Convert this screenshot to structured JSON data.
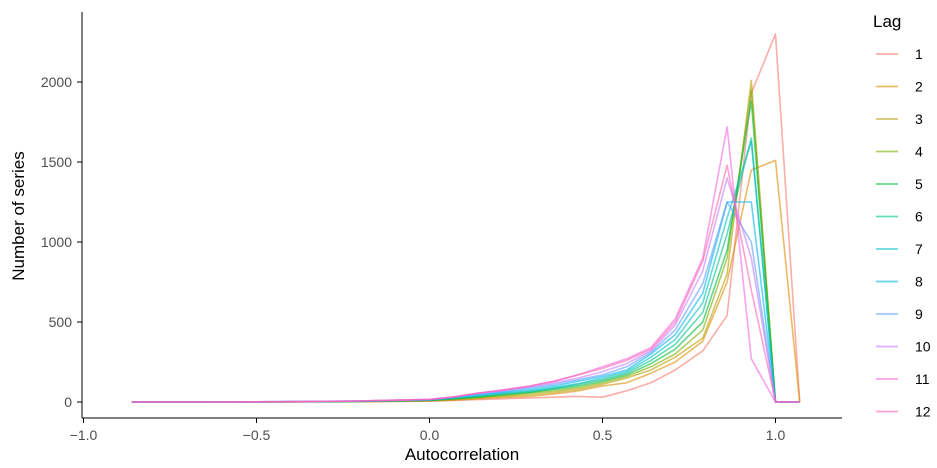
{
  "chart_data": {
    "type": "line",
    "xlabel": "Autocorrelation",
    "ylabel": "Number of series",
    "xlim": [
      -1.0,
      1.2
    ],
    "ylim": [
      -100,
      2350
    ],
    "x_ticks": [
      -1.0,
      -0.5,
      0.0,
      0.5,
      1.0
    ],
    "x_tick_labels": [
      "−1.0",
      "−0.5",
      "0.0",
      "0.5",
      "1.0"
    ],
    "y_ticks": [
      0,
      500,
      1000,
      1500,
      2000
    ],
    "y_tick_labels": [
      "0",
      "500",
      "1000",
      "1500",
      "2000"
    ],
    "grid": false,
    "legend": {
      "title": "Lag",
      "position": "right"
    },
    "x": [
      -0.86,
      -0.64,
      -0.43,
      -0.21,
      0.0,
      0.07,
      0.14,
      0.21,
      0.29,
      0.36,
      0.43,
      0.5,
      0.57,
      0.64,
      0.71,
      0.79,
      0.86,
      0.93,
      1.0,
      1.07
    ],
    "series": [
      {
        "name": "1",
        "color": "#F8766D",
        "values": [
          0,
          0,
          0,
          2,
          5,
          10,
          15,
          20,
          25,
          30,
          35,
          30,
          70,
          120,
          200,
          320,
          540,
          1930,
          2300,
          0
        ]
      },
      {
        "name": "2",
        "color": "#DE8C00",
        "values": [
          0,
          0,
          0,
          2,
          6,
          12,
          20,
          28,
          35,
          50,
          70,
          100,
          120,
          180,
          250,
          380,
          750,
          1450,
          1510,
          0
        ]
      },
      {
        "name": "3",
        "color": "#B79F00",
        "values": [
          0,
          0,
          1,
          3,
          8,
          15,
          25,
          35,
          45,
          60,
          80,
          110,
          150,
          200,
          280,
          400,
          800,
          2010,
          0,
          0
        ]
      },
      {
        "name": "4",
        "color": "#7CAE00",
        "values": [
          0,
          0,
          1,
          3,
          10,
          18,
          30,
          40,
          55,
          70,
          90,
          120,
          160,
          220,
          300,
          450,
          900,
          1950,
          0,
          0
        ]
      },
      {
        "name": "5",
        "color": "#00BA38",
        "values": [
          0,
          0,
          1,
          4,
          10,
          20,
          30,
          45,
          60,
          80,
          100,
          130,
          170,
          240,
          330,
          500,
          950,
          1880,
          0,
          0
        ]
      },
      {
        "name": "6",
        "color": "#00C08B",
        "values": [
          0,
          0,
          1,
          4,
          12,
          22,
          35,
          50,
          65,
          85,
          110,
          140,
          180,
          260,
          360,
          560,
          1050,
          1650,
          0,
          0
        ]
      },
      {
        "name": "7",
        "color": "#00BFC4",
        "values": [
          0,
          0,
          1,
          5,
          12,
          25,
          40,
          55,
          70,
          90,
          115,
          150,
          190,
          280,
          390,
          620,
          1150,
          1630,
          0,
          0
        ]
      },
      {
        "name": "8",
        "color": "#00B4F0",
        "values": [
          0,
          0,
          2,
          5,
          14,
          28,
          45,
          60,
          80,
          100,
          130,
          160,
          200,
          300,
          420,
          680,
          1250,
          1250,
          0,
          0
        ]
      },
      {
        "name": "9",
        "color": "#619CFF",
        "values": [
          0,
          0,
          2,
          6,
          15,
          30,
          50,
          65,
          90,
          110,
          140,
          170,
          220,
          310,
          450,
          740,
          1250,
          1000,
          0,
          0
        ]
      },
      {
        "name": "10",
        "color": "#C77CFF",
        "values": [
          0,
          0,
          2,
          6,
          16,
          32,
          55,
          70,
          95,
          120,
          150,
          190,
          240,
          320,
          480,
          820,
          1400,
          900,
          0,
          0
        ]
      },
      {
        "name": "11",
        "color": "#F564E3",
        "values": [
          0,
          0,
          2,
          6,
          16,
          32,
          55,
          75,
          100,
          130,
          170,
          220,
          270,
          340,
          520,
          900,
          1720,
          270,
          0,
          0
        ]
      },
      {
        "name": "12",
        "color": "#FF64B0",
        "values": [
          0,
          0,
          2,
          6,
          16,
          32,
          55,
          75,
          100,
          130,
          170,
          210,
          260,
          330,
          500,
          880,
          1480,
          700,
          0,
          0
        ]
      }
    ]
  }
}
